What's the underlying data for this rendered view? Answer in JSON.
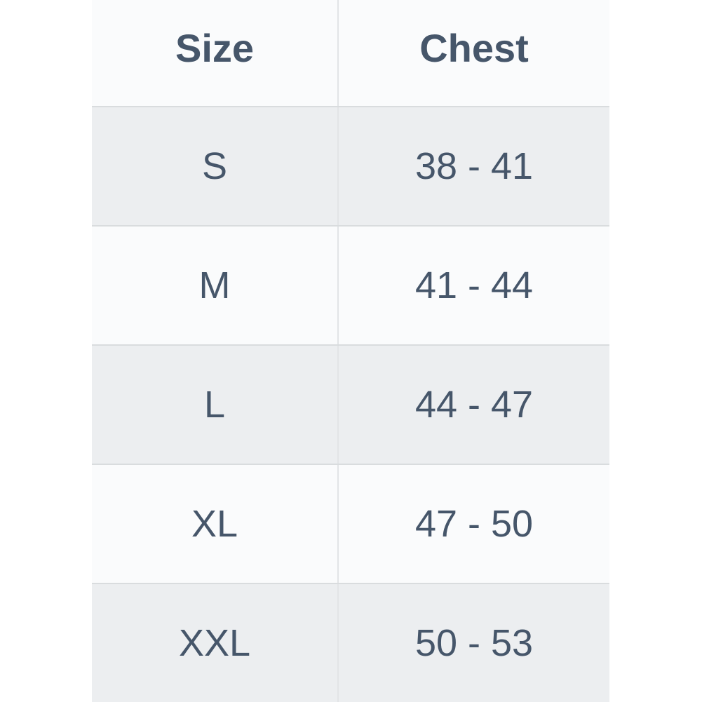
{
  "chart_data": {
    "type": "table",
    "columns": [
      "Size",
      "Chest"
    ],
    "rows": [
      {
        "size": "S",
        "chest": "38 - 41"
      },
      {
        "size": "M",
        "chest": "41 - 44"
      },
      {
        "size": "L",
        "chest": "44 - 47"
      },
      {
        "size": "XL",
        "chest": "47 - 50"
      },
      {
        "size": "XXL",
        "chest": "50 - 53"
      }
    ]
  },
  "colors": {
    "text": "#46566a",
    "row_bg": "#fafbfc",
    "row_alt_bg": "#eceef0",
    "border_h": "#d9dcde",
    "border_v": "#e2e4e6",
    "page_bg": "#ffffff"
  }
}
